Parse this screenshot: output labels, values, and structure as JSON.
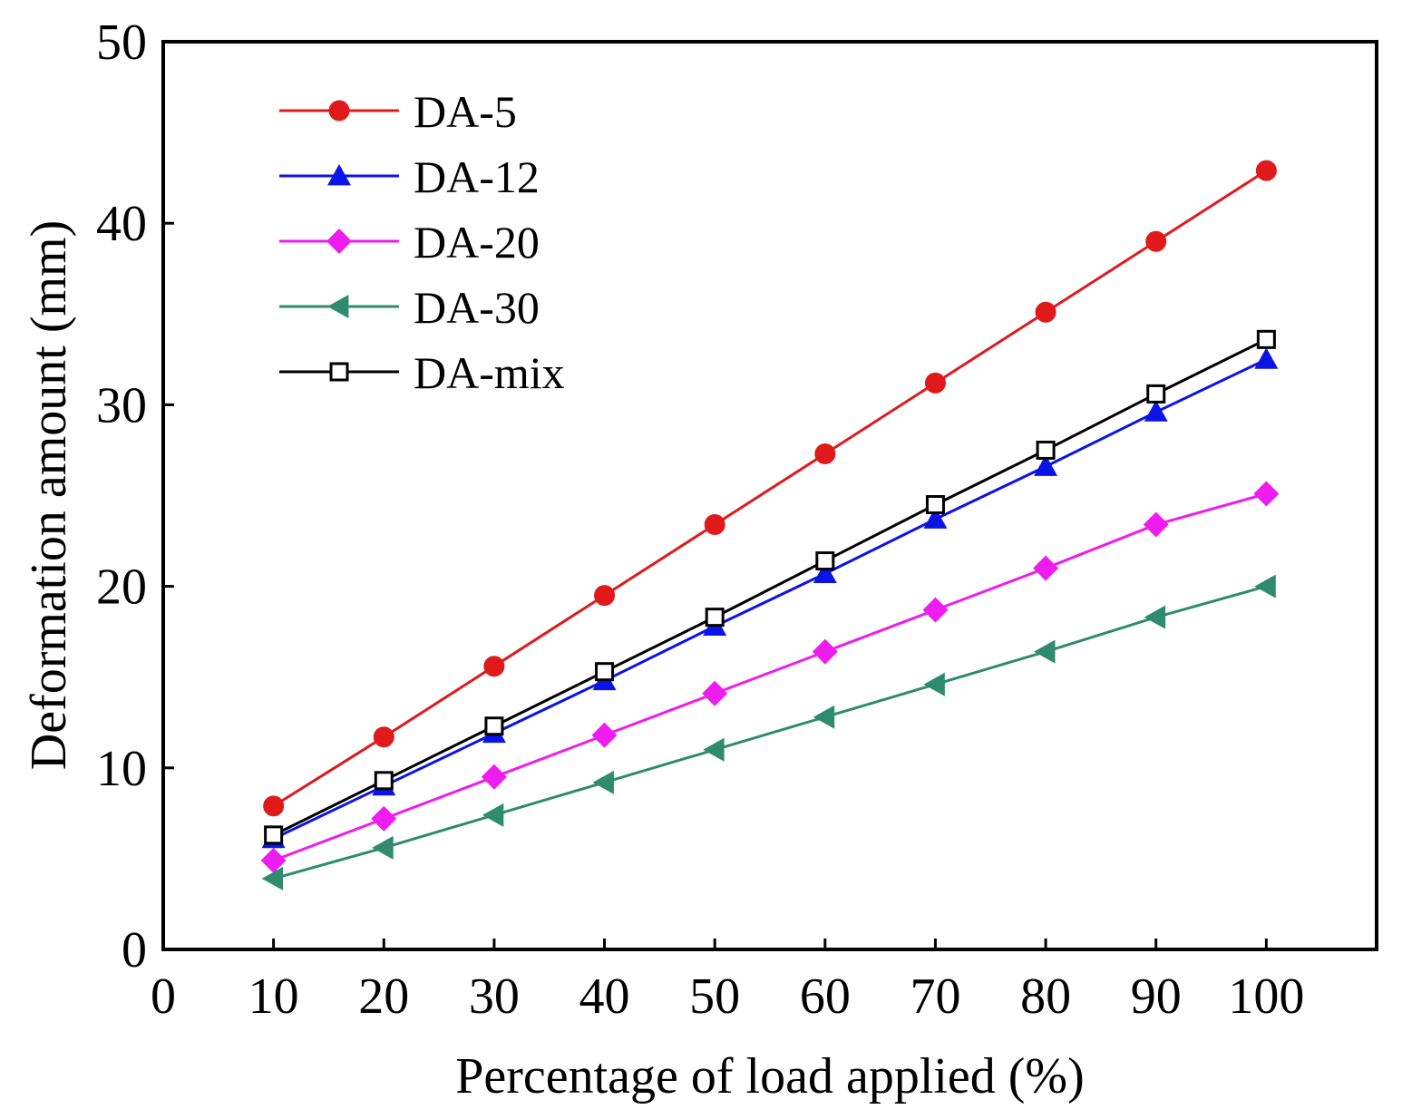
{
  "chart_data": {
    "type": "line",
    "title": "",
    "xlabel": "Percentage of load applied (%)",
    "ylabel": "Deformation amount (mm)",
    "xlim": [
      0,
      110
    ],
    "ylim": [
      0,
      50
    ],
    "x_ticks": [
      0,
      10,
      20,
      30,
      40,
      50,
      60,
      70,
      80,
      90,
      100
    ],
    "y_ticks": [
      0,
      10,
      20,
      30,
      40,
      50
    ],
    "grid": false,
    "legend_position": "top-left",
    "x": [
      10,
      20,
      30,
      40,
      50,
      60,
      70,
      80,
      90,
      100
    ],
    "series": [
      {
        "name": "DA-5",
        "color": "#e0191b",
        "marker": "circle",
        "values": [
          7.9,
          11.7,
          15.6,
          19.5,
          23.4,
          27.3,
          31.2,
          35.1,
          39.0,
          42.9
        ]
      },
      {
        "name": "DA-12",
        "color": "#0a14e6",
        "marker": "triangle-up",
        "values": [
          6.1,
          9.0,
          11.9,
          14.8,
          17.8,
          20.7,
          23.7,
          26.6,
          29.6,
          32.5
        ]
      },
      {
        "name": "DA-20",
        "color": "#ee1cee",
        "marker": "diamond",
        "values": [
          4.9,
          7.2,
          9.5,
          11.8,
          14.1,
          16.4,
          18.7,
          21.0,
          23.4,
          25.1
        ]
      },
      {
        "name": "DA-30",
        "color": "#2e8b6e",
        "marker": "triangle-left",
        "values": [
          3.9,
          5.6,
          7.4,
          9.2,
          11.0,
          12.8,
          14.6,
          16.4,
          18.3,
          20.0
        ]
      },
      {
        "name": "DA-mix",
        "color": "#000000",
        "marker": "square-open",
        "values": [
          6.3,
          9.3,
          12.3,
          15.3,
          18.3,
          21.4,
          24.5,
          27.5,
          30.6,
          33.6
        ]
      }
    ]
  }
}
